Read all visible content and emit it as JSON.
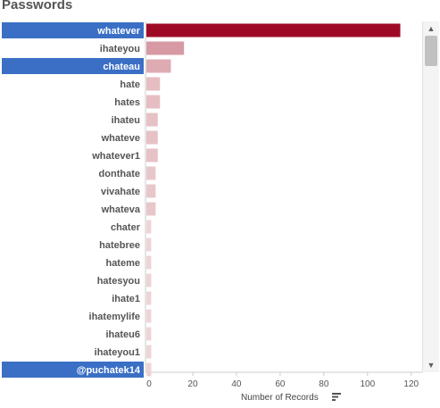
{
  "page": {
    "title": "Passwords"
  },
  "chart_data": {
    "type": "bar",
    "orientation": "horizontal",
    "title": "Passwords",
    "xlabel": "Number of Records",
    "ylabel": "",
    "xlim": [
      0,
      125
    ],
    "ticks": [
      "0",
      "20",
      "40",
      "60",
      "80",
      "100",
      "120"
    ],
    "categories": [
      "whatever",
      "ihateyou",
      "chateau",
      "hate",
      "hates",
      "ihateu",
      "whateve",
      "whatever1",
      "donthate",
      "vivahate",
      "whateva",
      "chater",
      "hatebree",
      "hateme",
      "hatesyou",
      "ihate1",
      "ihatemylife",
      "ihateu6",
      "ihateyou1",
      "@puchatek14"
    ],
    "values": [
      115,
      16,
      10,
      5,
      5,
      4,
      4,
      4,
      3,
      3,
      3,
      1,
      1,
      1,
      1,
      1,
      1,
      1,
      1,
      1
    ],
    "highlighted": [
      "whatever",
      "chateau",
      "@puchatek14"
    ],
    "colors": {
      "max": "#9e0a26",
      "min": "#f4e4e4",
      "highlight_label_bg": "#3a6fc5",
      "highlight_label_text": "#ffffff",
      "label_text": "#555555",
      "axis": "#cccccc"
    },
    "grid": false,
    "legend": "none"
  },
  "axis": {
    "title": "Number of Records"
  },
  "icons": {
    "sort": "sort-descending-icon",
    "scroll_up": "chevron-up-icon",
    "scroll_down": "chevron-down-icon"
  }
}
